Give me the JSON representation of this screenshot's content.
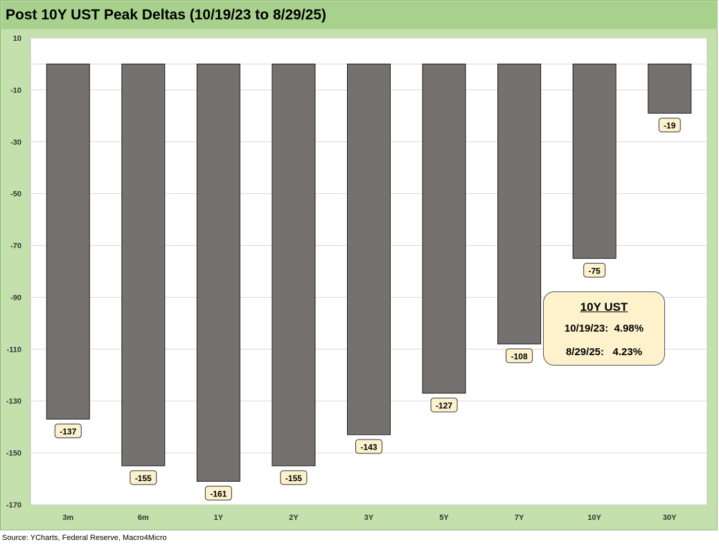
{
  "chart_data": {
    "type": "bar",
    "title": "Post 10Y UST Peak Deltas (10/19/23 to 8/29/25)",
    "categories": [
      "3m",
      "6m",
      "1Y",
      "2Y",
      "3Y",
      "5Y",
      "7Y",
      "10Y",
      "30Y"
    ],
    "values": [
      -137,
      -155,
      -161,
      -155,
      -143,
      -127,
      -108,
      -75,
      -19
    ],
    "data_labels": [
      "-137",
      "-155",
      "-161",
      "-155",
      "-143",
      "-127",
      "-108",
      "-75",
      "-19"
    ],
    "ylim": [
      -170,
      10
    ],
    "yticks": [
      10,
      -10,
      -30,
      -50,
      -70,
      -90,
      -110,
      -130,
      -150,
      -170
    ],
    "grid": true,
    "legend": "none",
    "colors": {
      "bar": "#767171",
      "bar_outline": "#1a1a1a",
      "frame_bg": "#c4e0ac",
      "title_bg": "#a9d18e",
      "label_bg": "#fdf2cc"
    },
    "annotation": {
      "title": "10Y UST",
      "row1": "10/19/23:  4.98%",
      "row2": "8/29/25:   4.23%"
    }
  },
  "source": "Source: YCharts, Federal Reserve, Macro4Micro"
}
